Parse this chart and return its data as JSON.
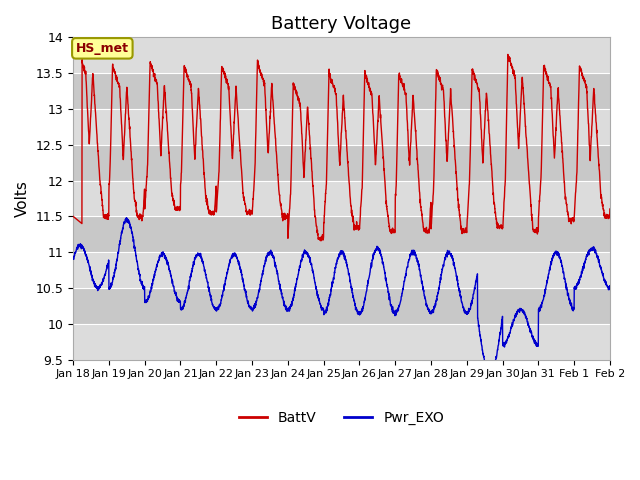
{
  "title": "Battery Voltage",
  "ylabel": "Volts",
  "ylim": [
    9.5,
    14.0
  ],
  "yticks": [
    9.5,
    10.0,
    10.5,
    11.0,
    11.5,
    12.0,
    12.5,
    13.0,
    13.5,
    14.0
  ],
  "bg_color": "#ffffff",
  "plot_bg_color": "#e8e8e8",
  "grid_color": "#ffffff",
  "red_color": "#cc0000",
  "blue_color": "#0000cc",
  "annotation_text": "HS_met",
  "legend_labels": [
    "BattV",
    "Pwr_EXO"
  ],
  "xticklabels": [
    "Jan 18",
    "Jan 19",
    "Jan 20",
    "Jan 21",
    "Jan 22",
    "Jan 23",
    "Jan 24",
    "Jan 25",
    "Jan 26",
    "Jan 27",
    "Jan 28",
    "Jan 29",
    "Jan 30",
    "Jan 31",
    "Feb 1",
    "Feb 2"
  ],
  "band_colors": [
    "#dcdcdc",
    "#c8c8c8"
  ],
  "band_edges": [
    9.5,
    10.0,
    10.5,
    11.0,
    11.5,
    12.0,
    12.5,
    13.0,
    13.5,
    14.0
  ]
}
